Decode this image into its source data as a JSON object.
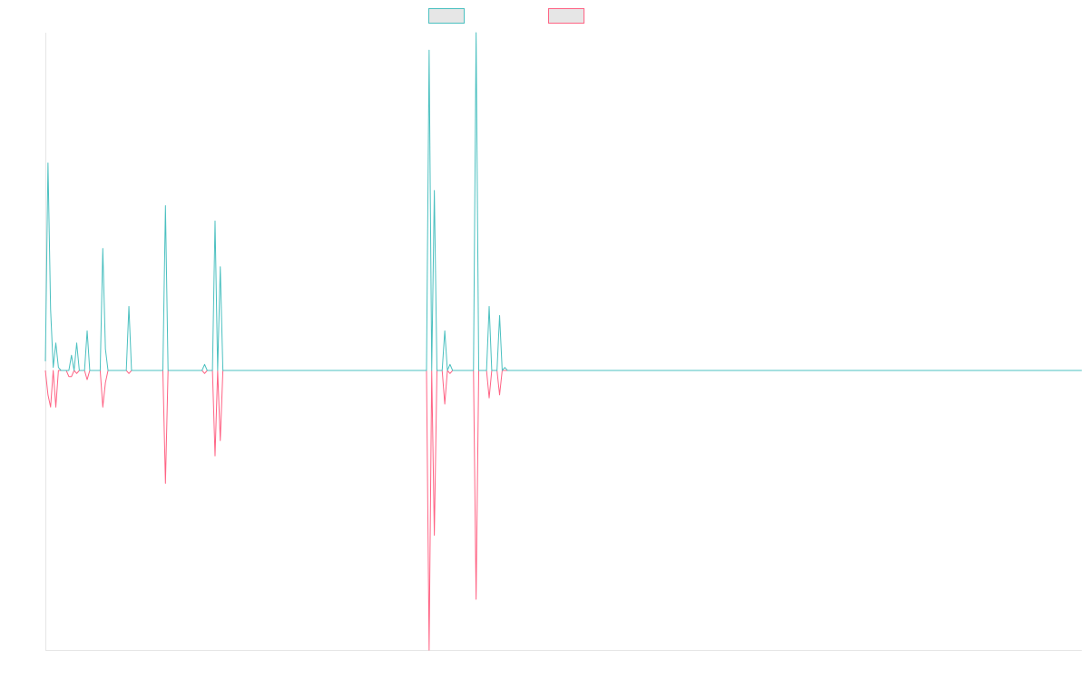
{
  "chart_data": {
    "type": "line",
    "title": "",
    "xlabel": "",
    "ylabel": "",
    "grid": false,
    "legend_position": "top-center",
    "x_count": 398,
    "ylim": [
      -1.0,
      1.0
    ],
    "series": [
      {
        "name": "",
        "color": "#4bc0c0",
        "points": [
          [
            0,
            0.03
          ],
          [
            1,
            0.68
          ],
          [
            2,
            0.2
          ],
          [
            3,
            0.01
          ],
          [
            4,
            0.09
          ],
          [
            5,
            0.01
          ],
          [
            6,
            0.0
          ],
          [
            7,
            0.0
          ],
          [
            8,
            0.0
          ],
          [
            9,
            0.0
          ],
          [
            10,
            0.05
          ],
          [
            11,
            0.0
          ],
          [
            12,
            0.09
          ],
          [
            13,
            0.0
          ],
          [
            14,
            0.0
          ],
          [
            15,
            0.0
          ],
          [
            16,
            0.13
          ],
          [
            17,
            0.0
          ],
          [
            18,
            0.0
          ],
          [
            19,
            0.0
          ],
          [
            20,
            0.0
          ],
          [
            21,
            0.0
          ],
          [
            22,
            0.4
          ],
          [
            23,
            0.07
          ],
          [
            24,
            0.0
          ],
          [
            25,
            0.0
          ],
          [
            31,
            0.0
          ],
          [
            32,
            0.21
          ],
          [
            33,
            0.0
          ],
          [
            45,
            0.0
          ],
          [
            46,
            0.54
          ],
          [
            47,
            0.0
          ],
          [
            60,
            0.0
          ],
          [
            61,
            0.02
          ],
          [
            62,
            0.0
          ],
          [
            63,
            0.0
          ],
          [
            64,
            0.0
          ],
          [
            65,
            0.49
          ],
          [
            66,
            0.0
          ],
          [
            67,
            0.34
          ],
          [
            68,
            0.0
          ],
          [
            146,
            0.0
          ],
          [
            147,
            1.05
          ],
          [
            148,
            0.0
          ],
          [
            149,
            0.59
          ],
          [
            150,
            0.0
          ],
          [
            152,
            0.0
          ],
          [
            153,
            0.13
          ],
          [
            154,
            0.0
          ],
          [
            155,
            0.02
          ],
          [
            156,
            0.0
          ],
          [
            164,
            0.0
          ],
          [
            165,
            1.2
          ],
          [
            166,
            0.0
          ],
          [
            169,
            0.0
          ],
          [
            170,
            0.21
          ],
          [
            171,
            0.0
          ],
          [
            173,
            0.0
          ],
          [
            174,
            0.18
          ],
          [
            175,
            0.0
          ],
          [
            176,
            0.01
          ],
          [
            177,
            0.0
          ],
          [
            397,
            0.0
          ]
        ]
      },
      {
        "name": "",
        "color": "#ff6384",
        "points": [
          [
            0,
            0.0
          ],
          [
            1,
            -0.08
          ],
          [
            2,
            -0.12
          ],
          [
            3,
            0.0
          ],
          [
            4,
            -0.12
          ],
          [
            5,
            0.0
          ],
          [
            6,
            0.0
          ],
          [
            7,
            0.0
          ],
          [
            8,
            0.0
          ],
          [
            9,
            -0.02
          ],
          [
            10,
            -0.02
          ],
          [
            11,
            0.0
          ],
          [
            12,
            -0.01
          ],
          [
            13,
            0.0
          ],
          [
            14,
            0.0
          ],
          [
            15,
            0.0
          ],
          [
            16,
            -0.03
          ],
          [
            17,
            0.0
          ],
          [
            18,
            0.0
          ],
          [
            19,
            0.0
          ],
          [
            20,
            0.0
          ],
          [
            21,
            0.0
          ],
          [
            22,
            -0.12
          ],
          [
            23,
            -0.04
          ],
          [
            24,
            0.0
          ],
          [
            31,
            0.0
          ],
          [
            32,
            -0.01
          ],
          [
            33,
            0.0
          ],
          [
            45,
            0.0
          ],
          [
            46,
            -0.37
          ],
          [
            47,
            0.0
          ],
          [
            60,
            0.0
          ],
          [
            61,
            -0.01
          ],
          [
            62,
            0.0
          ],
          [
            64,
            0.0
          ],
          [
            65,
            -0.28
          ],
          [
            66,
            0.0
          ],
          [
            67,
            -0.23
          ],
          [
            68,
            0.0
          ],
          [
            146,
            0.0
          ],
          [
            147,
            -1.0
          ],
          [
            148,
            0.0
          ],
          [
            149,
            -0.54
          ],
          [
            150,
            0.0
          ],
          [
            152,
            0.0
          ],
          [
            153,
            -0.11
          ],
          [
            154,
            0.0
          ],
          [
            155,
            -0.01
          ],
          [
            156,
            0.0
          ],
          [
            164,
            0.0
          ],
          [
            165,
            -0.75
          ],
          [
            166,
            0.0
          ],
          [
            169,
            0.0
          ],
          [
            170,
            -0.09
          ],
          [
            171,
            0.0
          ],
          [
            173,
            0.0
          ],
          [
            174,
            -0.08
          ],
          [
            175,
            0.0
          ],
          [
            176,
            0.0
          ],
          [
            177,
            0.0
          ],
          [
            397,
            0.0
          ]
        ]
      }
    ]
  }
}
